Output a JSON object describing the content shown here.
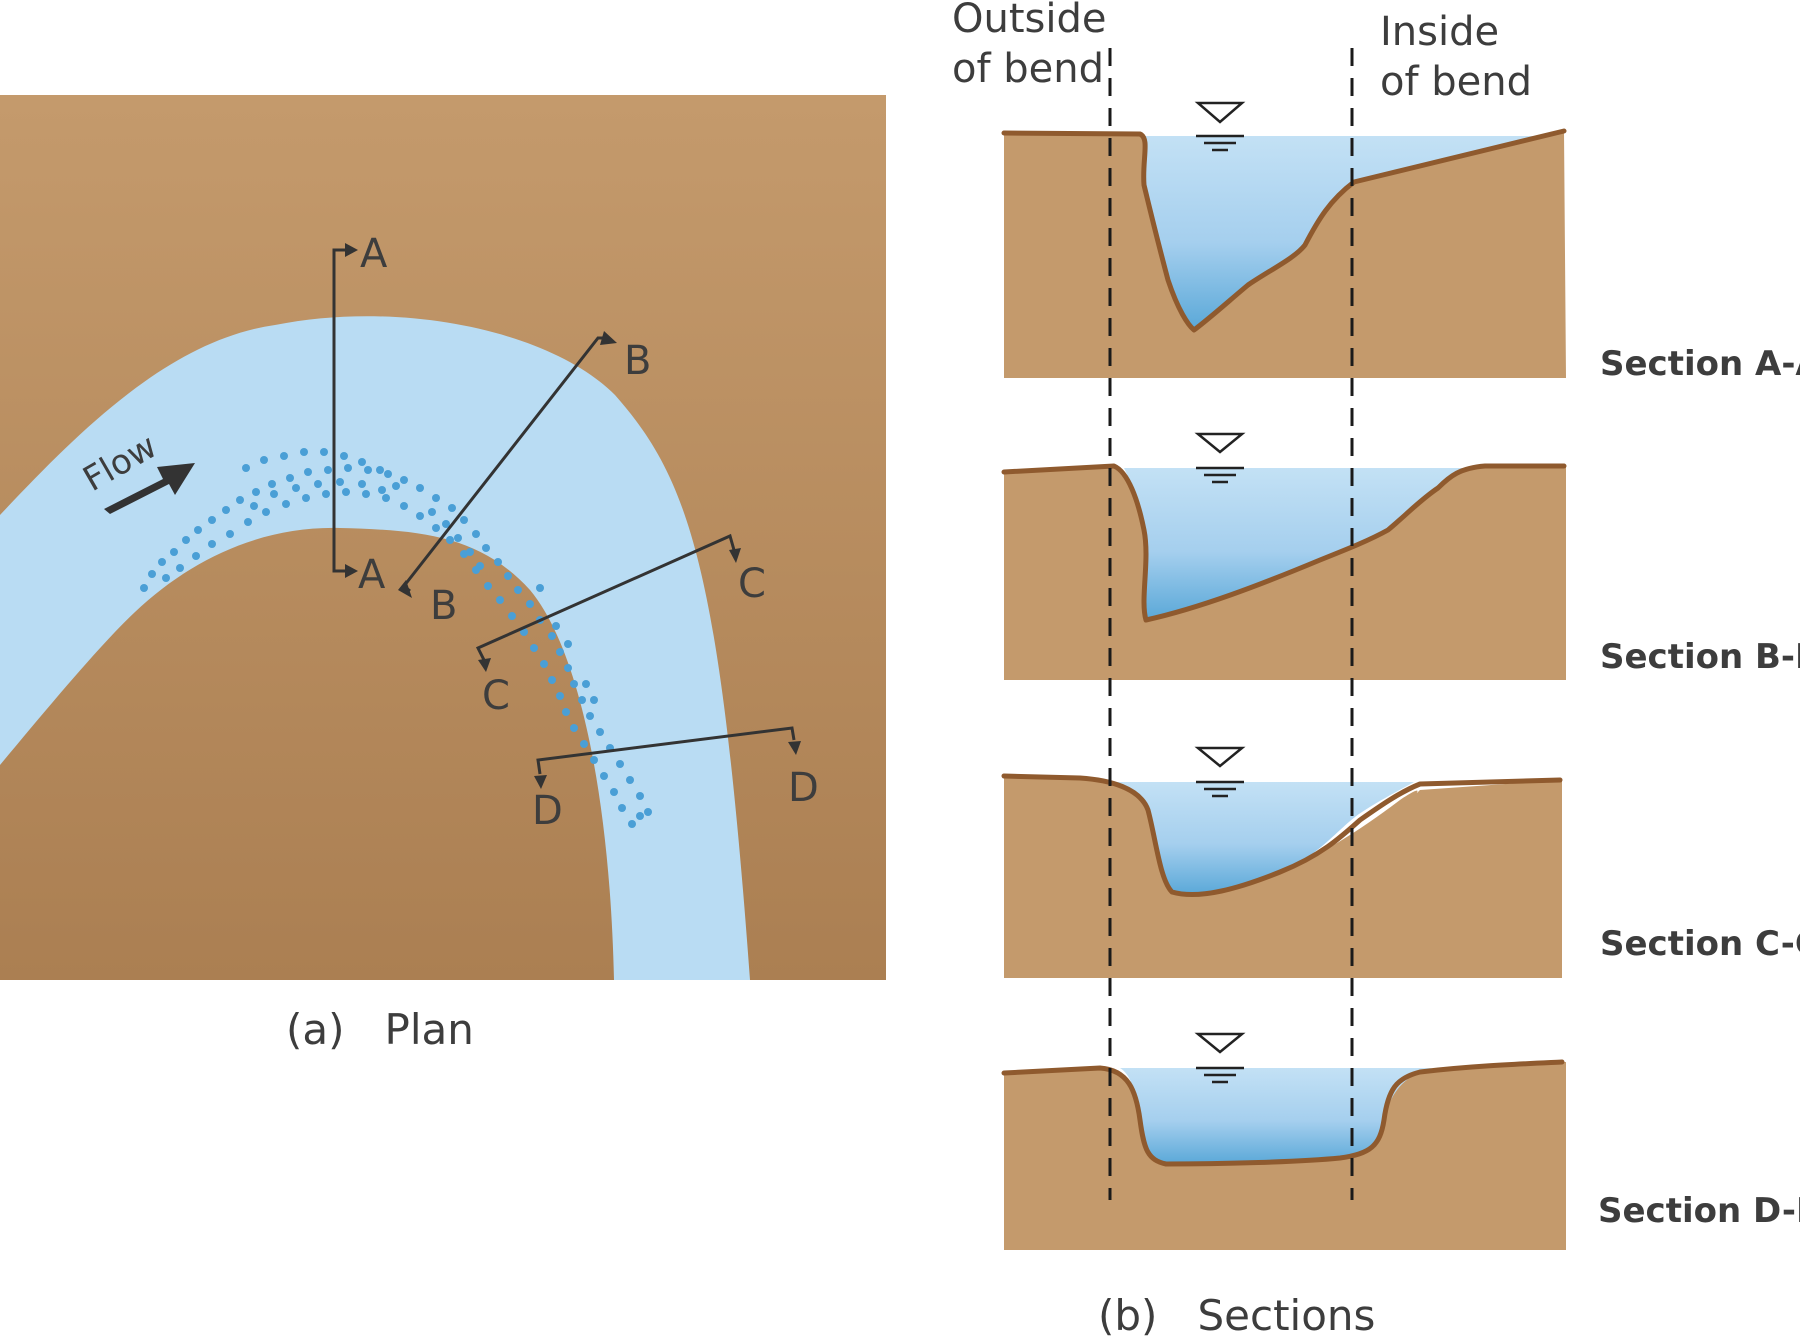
{
  "plan": {
    "flow_label": "Flow",
    "caption": "(a)   Plan",
    "section_markers": [
      {
        "id": "A",
        "start_label": "A",
        "end_label": "A"
      },
      {
        "id": "B",
        "start_label": "B",
        "end_label": "B"
      },
      {
        "id": "C",
        "start_label": "C",
        "end_label": "C"
      },
      {
        "id": "D",
        "start_label": "D",
        "end_label": "D"
      }
    ]
  },
  "sections": {
    "outside_label_line1": "Outside",
    "outside_label_line2": "of bend",
    "inside_label_line1": "Inside",
    "inside_label_line2": "of bend",
    "caption": "(b)   Sections",
    "panels": [
      {
        "id": "A-A",
        "label": "Section A-A"
      },
      {
        "id": "B-B",
        "label": "Section B-B"
      },
      {
        "id": "C-C",
        "label": "Section C-C"
      },
      {
        "id": "D-D",
        "label": "Section D-D"
      }
    ]
  },
  "colors": {
    "soil_light": "#c49a6c",
    "soil_dark": "#ab7f52",
    "water_light": "#b9dcf3",
    "water_deep": "#5aa8d8",
    "bank_line": "#8f5a2e",
    "deposit_dots": "#4a9fd6"
  }
}
